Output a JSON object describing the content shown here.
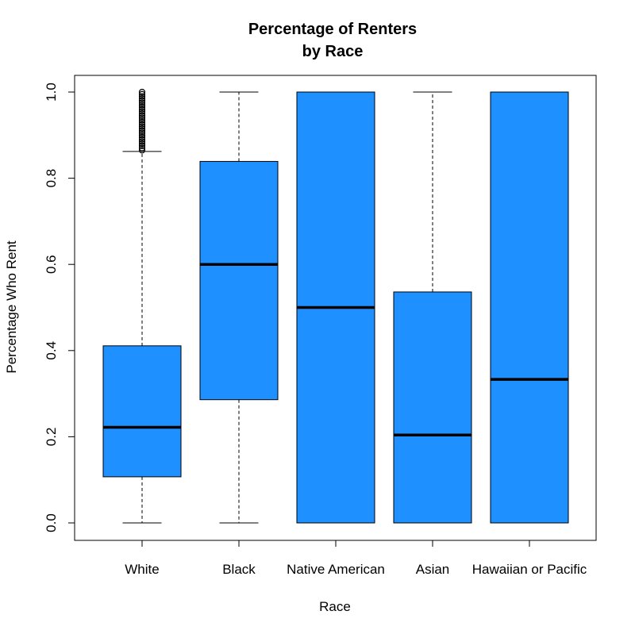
{
  "chart_data": {
    "type": "boxplot",
    "title": "Percentage of Renters",
    "subtitle": "by Race",
    "xlabel": "Race",
    "ylabel": "Percentage Who Rent",
    "ylim": [
      0.0,
      1.0
    ],
    "yticks": [
      "0.0",
      "0.2",
      "0.4",
      "0.6",
      "0.8",
      "1.0"
    ],
    "box_color": "#1e90ff",
    "categories": [
      "White",
      "Black",
      "Native American",
      "Asian",
      "Hawaiian or Pacific"
    ],
    "boxes": [
      {
        "category": "White",
        "whisker_low": 0.0,
        "q1": 0.107,
        "median": 0.222,
        "q3": 0.411,
        "whisker_high": 0.862,
        "outliers": [
          0.865,
          0.87,
          0.875,
          0.88,
          0.885,
          0.89,
          0.895,
          0.9,
          0.905,
          0.91,
          0.915,
          0.92,
          0.925,
          0.93,
          0.935,
          0.94,
          0.945,
          0.95,
          0.955,
          0.96,
          0.965,
          0.97,
          0.975,
          0.98,
          0.985,
          0.99,
          0.995,
          1.0
        ]
      },
      {
        "category": "Black",
        "whisker_low": 0.0,
        "q1": 0.286,
        "median": 0.6,
        "q3": 0.839,
        "whisker_high": 1.0,
        "outliers": []
      },
      {
        "category": "Native American",
        "whisker_low": 0.0,
        "q1": 0.0,
        "median": 0.5,
        "q3": 1.0,
        "whisker_high": 1.0,
        "outliers": []
      },
      {
        "category": "Asian",
        "whisker_low": 0.0,
        "q1": 0.0,
        "median": 0.204,
        "q3": 0.536,
        "whisker_high": 1.0,
        "outliers": []
      },
      {
        "category": "Hawaiian or Pacific",
        "whisker_low": 0.0,
        "q1": 0.0,
        "median": 0.333,
        "q3": 1.0,
        "whisker_high": 1.0,
        "outliers": []
      }
    ]
  }
}
